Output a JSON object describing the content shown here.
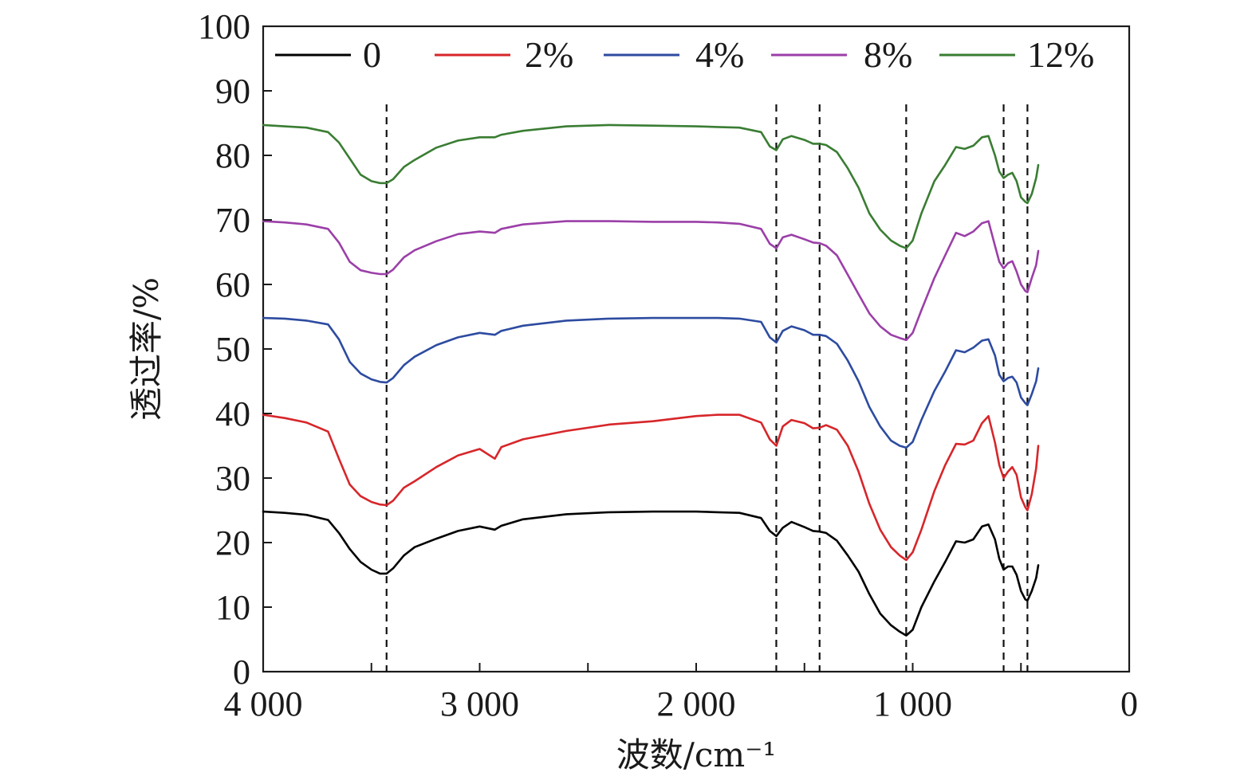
{
  "chart_data": {
    "type": "line",
    "title": "",
    "xlabel": "波数/cm⁻¹",
    "ylabel": "透过率/%",
    "xlim": [
      4000,
      0
    ],
    "ylim": [
      0,
      100
    ],
    "x_reversed": true,
    "x_ticks": [
      4000,
      3000,
      2000,
      1000,
      0
    ],
    "x_tick_labels": [
      "4 000",
      "3 000",
      "2 000",
      "1 000",
      "0"
    ],
    "y_ticks": [
      0,
      10,
      20,
      30,
      40,
      50,
      60,
      70,
      80,
      90,
      100
    ],
    "y_tick_labels": [
      "0",
      "10",
      "20",
      "30",
      "40",
      "50",
      "60",
      "70",
      "80",
      "90",
      "100"
    ],
    "grid": false,
    "legend_position": "top",
    "reference_lines_x": [
      3430,
      1630,
      1430,
      1030,
      580,
      470
    ],
    "x": [
      4000,
      3900,
      3800,
      3700,
      3650,
      3600,
      3550,
      3500,
      3460,
      3430,
      3400,
      3350,
      3300,
      3200,
      3100,
      3000,
      2930,
      2900,
      2800,
      2600,
      2400,
      2200,
      2000,
      1900,
      1800,
      1700,
      1660,
      1630,
      1600,
      1560,
      1500,
      1460,
      1430,
      1400,
      1350,
      1300,
      1250,
      1200,
      1150,
      1100,
      1060,
      1030,
      1000,
      960,
      900,
      850,
      800,
      760,
      720,
      680,
      650,
      620,
      600,
      580,
      560,
      540,
      520,
      500,
      480,
      470,
      450,
      430,
      420
    ],
    "series": [
      {
        "name": "0",
        "color": "#000000",
        "values": [
          24.8,
          24.6,
          24.3,
          23.5,
          21.5,
          19.0,
          17.0,
          15.8,
          15.2,
          15.2,
          16.0,
          18.0,
          19.3,
          20.6,
          21.8,
          22.5,
          22.0,
          22.6,
          23.6,
          24.4,
          24.7,
          24.8,
          24.8,
          24.7,
          24.6,
          23.8,
          21.8,
          21.0,
          22.3,
          23.2,
          22.4,
          21.8,
          21.7,
          21.5,
          20.3,
          18.0,
          15.5,
          12.0,
          9.0,
          7.2,
          6.2,
          5.6,
          6.5,
          10.0,
          14.0,
          17.0,
          20.2,
          20.0,
          20.5,
          22.5,
          22.8,
          20.5,
          17.5,
          15.8,
          16.3,
          16.3,
          15.0,
          12.5,
          11.2,
          11.0,
          12.5,
          14.5,
          16.5
        ]
      },
      {
        "name": "2%",
        "color": "#d7262a",
        "values": [
          39.8,
          39.3,
          38.6,
          37.2,
          33.0,
          29.0,
          27.2,
          26.3,
          25.9,
          25.8,
          26.5,
          28.5,
          29.5,
          31.7,
          33.5,
          34.5,
          33.0,
          34.8,
          36.0,
          37.3,
          38.3,
          38.8,
          39.6,
          39.8,
          39.8,
          38.6,
          36.0,
          35.0,
          38.0,
          39.0,
          38.5,
          37.7,
          37.8,
          38.2,
          37.5,
          35.0,
          31.0,
          26.0,
          22.0,
          19.3,
          18.0,
          17.3,
          18.5,
          22.0,
          28.0,
          32.0,
          35.3,
          35.2,
          35.8,
          38.5,
          39.6,
          35.5,
          32.0,
          30.0,
          31.0,
          31.7,
          30.5,
          27.0,
          25.5,
          25.0,
          27.5,
          31.5,
          35.0
        ]
      },
      {
        "name": "4%",
        "color": "#2d4ba0",
        "values": [
          54.8,
          54.7,
          54.4,
          53.8,
          51.5,
          48.0,
          46.2,
          45.3,
          44.9,
          44.8,
          45.5,
          47.5,
          48.8,
          50.6,
          51.8,
          52.5,
          52.2,
          52.8,
          53.6,
          54.4,
          54.7,
          54.8,
          54.8,
          54.8,
          54.7,
          54.2,
          51.8,
          51.0,
          52.8,
          53.5,
          52.9,
          52.2,
          52.2,
          52.0,
          50.8,
          48.2,
          45.0,
          41.0,
          38.0,
          35.8,
          35.0,
          34.7,
          35.6,
          39.0,
          43.5,
          46.5,
          49.8,
          49.5,
          50.2,
          51.3,
          51.5,
          49.0,
          46.0,
          45.0,
          45.5,
          45.7,
          44.8,
          42.5,
          41.6,
          41.3,
          43.0,
          45.0,
          47.0
        ]
      },
      {
        "name": "8%",
        "color": "#9b3fa8",
        "values": [
          69.8,
          69.6,
          69.3,
          68.6,
          66.5,
          63.5,
          62.2,
          61.8,
          61.6,
          61.6,
          62.3,
          64.2,
          65.3,
          66.7,
          67.8,
          68.2,
          68.0,
          68.6,
          69.3,
          69.8,
          69.8,
          69.7,
          69.7,
          69.6,
          69.4,
          68.6,
          66.3,
          65.6,
          67.3,
          67.7,
          67.0,
          66.5,
          66.4,
          66.0,
          64.5,
          61.5,
          58.5,
          55.5,
          53.5,
          52.2,
          51.7,
          51.4,
          52.5,
          56.0,
          61.0,
          64.5,
          68.0,
          67.5,
          68.2,
          69.5,
          69.8,
          66.0,
          63.5,
          62.5,
          63.3,
          63.6,
          62.0,
          60.0,
          59.0,
          58.8,
          61.0,
          63.0,
          65.2
        ]
      },
      {
        "name": "12%",
        "color": "#3a7d33",
        "values": [
          84.7,
          84.5,
          84.3,
          83.6,
          82.0,
          79.5,
          77.0,
          76.0,
          75.7,
          75.7,
          76.3,
          78.2,
          79.3,
          81.2,
          82.3,
          82.8,
          82.8,
          83.2,
          83.8,
          84.5,
          84.7,
          84.6,
          84.5,
          84.4,
          84.3,
          83.6,
          81.4,
          80.8,
          82.5,
          83.0,
          82.4,
          81.8,
          81.8,
          81.6,
          80.5,
          78.0,
          75.0,
          71.0,
          68.5,
          66.8,
          66.0,
          65.6,
          66.8,
          71.0,
          76.0,
          78.5,
          81.3,
          81.0,
          81.5,
          82.8,
          83.0,
          80.0,
          77.5,
          76.5,
          77.0,
          77.3,
          76.0,
          73.5,
          72.8,
          72.6,
          74.0,
          76.5,
          78.5
        ]
      }
    ]
  }
}
